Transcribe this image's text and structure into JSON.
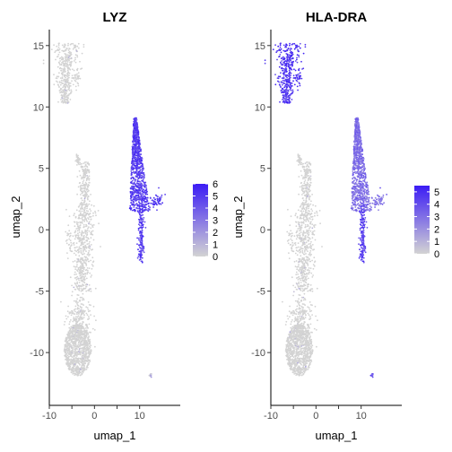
{
  "chart_data": [
    {
      "type": "scatter",
      "title": "LYZ",
      "xlabel": "umap_1",
      "ylabel": "umap_2",
      "xlim": [
        -10,
        19
      ],
      "ylim": [
        -14.3,
        16.3
      ],
      "xticks": [
        -10,
        -5,
        0,
        5,
        10
      ],
      "yticks": [
        -10,
        -5,
        0,
        5,
        10,
        15
      ],
      "xtick_labels": [
        "-10",
        "",
        "0",
        "",
        "10"
      ],
      "ytick_labels": [
        "-10",
        "-5",
        "0",
        "5",
        "10",
        "15"
      ],
      "color_scale": {
        "low": "#d3d3d3",
        "high": "#3b1cf5",
        "range": [
          0,
          6
        ]
      },
      "legend_ticks": [
        0,
        1,
        2,
        3,
        4,
        5,
        6
      ],
      "expression_by_cluster": [
        {
          "cluster": "top-left",
          "level": 0.1
        },
        {
          "cluster": "central-tail",
          "level": 0.1
        },
        {
          "cluster": "bottom-blob",
          "level": 0.1
        },
        {
          "cluster": "right-cone",
          "level": 0.82
        },
        {
          "cluster": "right-stalk",
          "level": 0.8
        },
        {
          "cluster": "small-island",
          "level": 0.2
        }
      ]
    },
    {
      "type": "scatter",
      "title": "HLA-DRA",
      "xlabel": "umap_1",
      "ylabel": "umap_2",
      "xlim": [
        -10,
        19
      ],
      "ylim": [
        -14.3,
        16.3
      ],
      "xticks": [
        -10,
        -5,
        0,
        5,
        10
      ],
      "yticks": [
        -10,
        -5,
        0,
        5,
        10,
        15
      ],
      "xtick_labels": [
        "-10",
        "",
        "0",
        "",
        "10"
      ],
      "ytick_labels": [
        "-10",
        "-5",
        "0",
        "5",
        "10",
        "15"
      ],
      "color_scale": {
        "low": "#d3d3d3",
        "high": "#3b1cf5",
        "range": [
          0,
          5.5
        ]
      },
      "legend_ticks": [
        0,
        1,
        2,
        3,
        4,
        5
      ],
      "expression_by_cluster": [
        {
          "cluster": "top-left",
          "level": 0.85
        },
        {
          "cluster": "central-tail",
          "level": 0.1
        },
        {
          "cluster": "bottom-blob",
          "level": 0.12
        },
        {
          "cluster": "right-cone",
          "level": 0.55
        },
        {
          "cluster": "right-stalk",
          "level": 0.8
        },
        {
          "cluster": "small-island",
          "level": 0.7
        }
      ]
    }
  ]
}
